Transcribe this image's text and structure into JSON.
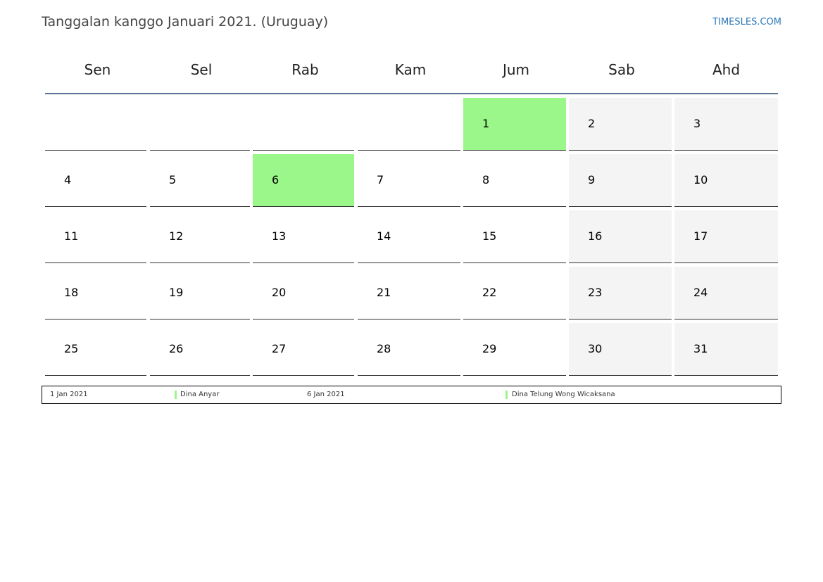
{
  "header": {
    "title": "Tanggalan kanggo Januari 2021. (Uruguay)",
    "brand": "TIMESLES.COM",
    "brand_color": "#2b77b9"
  },
  "weekdays": [
    "Sen",
    "Sel",
    "Rab",
    "Kam",
    "Jum",
    "Sab",
    "Ahd"
  ],
  "colors": {
    "holiday": "#9bf789",
    "weekend": "#f4f4f4",
    "header_rule": "#5b7493"
  },
  "calendar": {
    "leading_blank_days": 4,
    "weeks": [
      [
        "",
        "",
        "",
        "",
        "1",
        "2",
        "3"
      ],
      [
        "4",
        "5",
        "6",
        "7",
        "8",
        "9",
        "10"
      ],
      [
        "11",
        "12",
        "13",
        "14",
        "15",
        "16",
        "17"
      ],
      [
        "18",
        "19",
        "20",
        "21",
        "22",
        "23",
        "24"
      ],
      [
        "25",
        "26",
        "27",
        "28",
        "29",
        "30",
        "31"
      ]
    ],
    "holidays": [
      "1",
      "6"
    ]
  },
  "legend": [
    {
      "date": "1 Jan 2021",
      "name": "Dina Anyar"
    },
    {
      "date": "6 Jan 2021",
      "name": "Dina Telung Wong Wicaksana"
    }
  ]
}
